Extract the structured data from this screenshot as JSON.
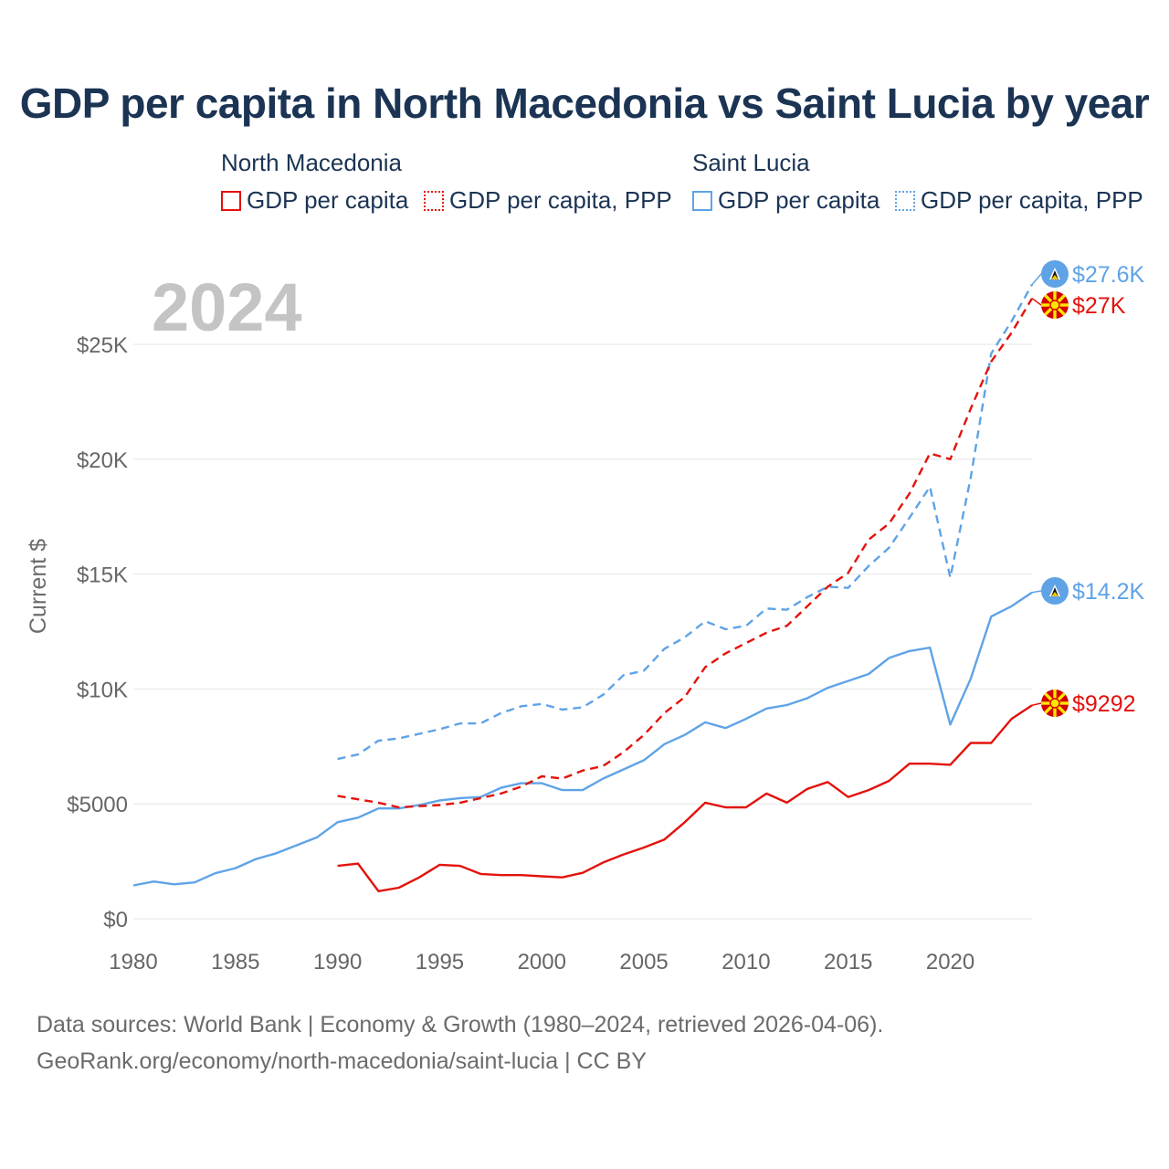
{
  "title": "GDP per capita in North Macedonia vs Saint Lucia by year",
  "legend": {
    "groups": [
      {
        "country": "North Macedonia",
        "items": [
          "GDP per capita",
          "GDP per capita, PPP"
        ]
      },
      {
        "country": "Saint Lucia",
        "items": [
          "GDP per capita",
          "GDP per capita, PPP"
        ]
      }
    ]
  },
  "year_label": "2024",
  "end_labels": {
    "lc_ppp": "$27.6K",
    "mk_ppp": "$27K",
    "lc_gdp": "$14.2K",
    "mk_gdp": "$9292"
  },
  "colors": {
    "north_macedonia": "#e3120b",
    "saint_lucia": "#5fa3e6",
    "grid": "#e6e6e6",
    "axis_text": "#666666"
  },
  "icons": {
    "north_macedonia": "north-macedonia-flag-icon",
    "saint_lucia": "saint-lucia-flag-icon"
  },
  "source": {
    "line1": "Data sources: World Bank | Economy & Growth (1980–2024, retrieved 2026-04-06).",
    "line2": "GeoRank.org/economy/north-macedonia/saint-lucia | CC BY"
  },
  "chart_data": {
    "type": "line",
    "title": "GDP per capita in North Macedonia vs Saint Lucia by year",
    "xlabel": "",
    "ylabel": "Current $",
    "xlim": [
      1980,
      2024
    ],
    "ylim": [
      0,
      28000
    ],
    "x_ticks": [
      1980,
      1985,
      1990,
      1995,
      2000,
      2005,
      2010,
      2015,
      2020
    ],
    "y_ticks": [
      {
        "value": 0,
        "label": "$0"
      },
      {
        "value": 5000,
        "label": "$5000"
      },
      {
        "value": 10000,
        "label": "$10K"
      },
      {
        "value": 15000,
        "label": "$15K"
      },
      {
        "value": 20000,
        "label": "$20K"
      },
      {
        "value": 25000,
        "label": "$25K"
      }
    ],
    "grid": true,
    "series": [
      {
        "id": "lc_gdp",
        "country": "Saint Lucia",
        "name": "GDP per capita",
        "style": "solid",
        "color": "#5fa3e6",
        "x": [
          1980,
          1981,
          1982,
          1983,
          1984,
          1985,
          1986,
          1987,
          1988,
          1989,
          1990,
          1991,
          1992,
          1993,
          1994,
          1995,
          1996,
          1997,
          1998,
          1999,
          2000,
          2001,
          2002,
          2003,
          2004,
          2005,
          2006,
          2007,
          2008,
          2009,
          2010,
          2011,
          2012,
          2013,
          2014,
          2015,
          2016,
          2017,
          2018,
          2019,
          2020,
          2021,
          2022,
          2023,
          2024
        ],
        "values": [
          1450,
          1620,
          1500,
          1580,
          1980,
          2200,
          2600,
          2850,
          3200,
          3550,
          4200,
          4400,
          4800,
          4800,
          4950,
          5150,
          5250,
          5300,
          5700,
          5900,
          5900,
          5600,
          5600,
          6100,
          6500,
          6900,
          7600,
          8000,
          8550,
          8300,
          8700,
          9150,
          9300,
          9600,
          10050,
          10350,
          10650,
          11350,
          11650,
          11800,
          8450,
          10450,
          13150,
          13600,
          14200
        ]
      },
      {
        "id": "lc_ppp",
        "country": "Saint Lucia",
        "name": "GDP per capita, PPP",
        "style": "dashed",
        "color": "#5fa3e6",
        "x": [
          1990,
          1991,
          1992,
          1993,
          1994,
          1995,
          1996,
          1997,
          1998,
          1999,
          2000,
          2001,
          2002,
          2003,
          2004,
          2005,
          2006,
          2007,
          2008,
          2009,
          2010,
          2011,
          2012,
          2013,
          2014,
          2015,
          2016,
          2017,
          2018,
          2019,
          2020,
          2021,
          2022,
          2023,
          2024
        ],
        "values": [
          6950,
          7150,
          7750,
          7850,
          8050,
          8250,
          8500,
          8500,
          8950,
          9250,
          9350,
          9100,
          9200,
          9750,
          10600,
          10800,
          11750,
          12250,
          12950,
          12600,
          12750,
          13500,
          13450,
          14000,
          14450,
          14400,
          15350,
          16150,
          17450,
          18800,
          14850,
          19200,
          24600,
          26000,
          27600
        ]
      },
      {
        "id": "mk_gdp",
        "country": "North Macedonia",
        "name": "GDP per capita",
        "style": "solid",
        "color": "#e3120b",
        "x": [
          1990,
          1991,
          1992,
          1993,
          1994,
          1995,
          1996,
          1997,
          1998,
          1999,
          2000,
          2001,
          2002,
          2003,
          2004,
          2005,
          2006,
          2007,
          2008,
          2009,
          2010,
          2011,
          2012,
          2013,
          2014,
          2015,
          2016,
          2017,
          2018,
          2019,
          2020,
          2021,
          2022,
          2023,
          2024
        ],
        "values": [
          2300,
          2400,
          1200,
          1350,
          1800,
          2350,
          2300,
          1950,
          1900,
          1900,
          1850,
          1800,
          2000,
          2450,
          2800,
          3100,
          3450,
          4200,
          5050,
          4850,
          4850,
          5450,
          5050,
          5650,
          5950,
          5300,
          5600,
          6000,
          6750,
          6750,
          6700,
          7650,
          7650,
          8700,
          9292
        ]
      },
      {
        "id": "mk_ppp",
        "country": "North Macedonia",
        "name": "GDP per capita, PPP",
        "style": "dashed",
        "color": "#e3120b",
        "x": [
          1990,
          1991,
          1992,
          1993,
          1994,
          1995,
          1996,
          1997,
          1998,
          1999,
          2000,
          2001,
          2002,
          2003,
          2004,
          2005,
          2006,
          2007,
          2008,
          2009,
          2010,
          2011,
          2012,
          2013,
          2014,
          2015,
          2016,
          2017,
          2018,
          2019,
          2020,
          2021,
          2022,
          2023,
          2024
        ],
        "values": [
          5350,
          5200,
          5050,
          4850,
          4900,
          4950,
          5050,
          5250,
          5450,
          5750,
          6200,
          6100,
          6450,
          6650,
          7250,
          8000,
          8950,
          9650,
          10950,
          11550,
          12000,
          12450,
          12750,
          13600,
          14450,
          15050,
          16500,
          17200,
          18500,
          20250,
          20000,
          22200,
          24250,
          25500,
          27000
        ]
      }
    ]
  }
}
